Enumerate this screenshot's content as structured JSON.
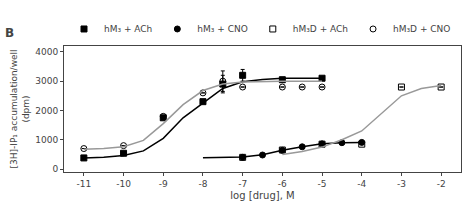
{
  "chart_data": {
    "type": "scatter",
    "xlabel": "log [drug], M",
    "ylabel": "[3H]-IP₁ accumulation/well\n(dpm)",
    "xlim": [
      -11.5,
      -1.5
    ],
    "xticks": [
      -11,
      -10,
      -9,
      -8,
      -7,
      -6,
      -5,
      -4,
      -3,
      -2
    ],
    "ylim": [
      -100,
      4200
    ],
    "yticks": [
      0,
      1000,
      2000,
      3000,
      4000
    ],
    "grid": false,
    "legend": "top",
    "annotations": [
      "B"
    ],
    "series": [
      {
        "name": "hM₃ + ACh",
        "type": "scatter",
        "marker": "square",
        "color": "#000000",
        "x": [
          -11,
          -10,
          -9,
          -8,
          -7.5,
          -7,
          -6,
          -5
        ],
        "values": [
          380,
          540,
          1750,
          2300,
          2900,
          3200,
          3050,
          3100
        ],
        "error": [
          0,
          0,
          0,
          0,
          300,
          200,
          0,
          0
        ]
      },
      {
        "type": "line",
        "color": "#000000",
        "x": [
          -11,
          -10.5,
          -10,
          -9.5,
          -9,
          -8.5,
          -8,
          -7.5,
          -7,
          -6.5,
          -6,
          -5.5,
          -5
        ],
        "values": [
          380,
          400,
          460,
          620,
          1050,
          1750,
          2250,
          2750,
          2980,
          3060,
          3100,
          3100,
          3100
        ]
      },
      {
        "name": "hM₃ + CNO",
        "type": "scatter",
        "marker": "circle",
        "color": "#000000",
        "x": [
          -7,
          -6.5,
          -6,
          -5.5,
          -5,
          -4.5,
          -4
        ],
        "values": [
          400,
          480,
          640,
          760,
          860,
          900,
          910
        ],
        "error": [
          0,
          0,
          0,
          0,
          0,
          0,
          0
        ]
      },
      {
        "type": "line",
        "color": "#000000",
        "x": [
          -8,
          -7.5,
          -7,
          -6.5,
          -6,
          -5.5,
          -5,
          -4.5,
          -4
        ],
        "values": [
          390,
          395,
          410,
          490,
          640,
          760,
          860,
          900,
          910
        ]
      },
      {
        "name": "hM₃D + ACh",
        "type": "scatter",
        "marker": "square-open",
        "color": "#000000",
        "x": [
          -7,
          -6,
          -5,
          -4,
          -3,
          -2
        ],
        "values": [
          400,
          650,
          850,
          850,
          2800,
          2800
        ],
        "error": [
          0,
          0,
          0,
          0,
          0,
          0
        ]
      },
      {
        "type": "line",
        "color": "#999999",
        "x": [
          -6,
          -5.5,
          -5,
          -4.5,
          -4,
          -3.5,
          -3,
          -2.5,
          -2
        ],
        "values": [
          500,
          600,
          750,
          1000,
          1300,
          1900,
          2500,
          2750,
          2850
        ]
      },
      {
        "name": "hM₃D + CNO",
        "type": "scatter",
        "marker": "circle-open",
        "color": "#000000",
        "x": [
          -11,
          -10,
          -9,
          -8,
          -7.5,
          -7,
          -6,
          -5.5,
          -5
        ],
        "values": [
          700,
          800,
          1800,
          2600,
          3000,
          2800,
          2800,
          2800,
          2800
        ],
        "error": [
          0,
          0,
          0,
          0,
          350,
          0,
          0,
          0,
          0
        ]
      },
      {
        "type": "line",
        "color": "#999999",
        "x": [
          -11,
          -10.5,
          -10,
          -9.5,
          -9,
          -8.5,
          -8,
          -7.5,
          -7,
          -6.5,
          -6,
          -5.5,
          -5
        ],
        "values": [
          680,
          700,
          760,
          980,
          1550,
          2200,
          2680,
          2900,
          2970,
          2990,
          3000,
          3000,
          3000
        ]
      }
    ]
  }
}
